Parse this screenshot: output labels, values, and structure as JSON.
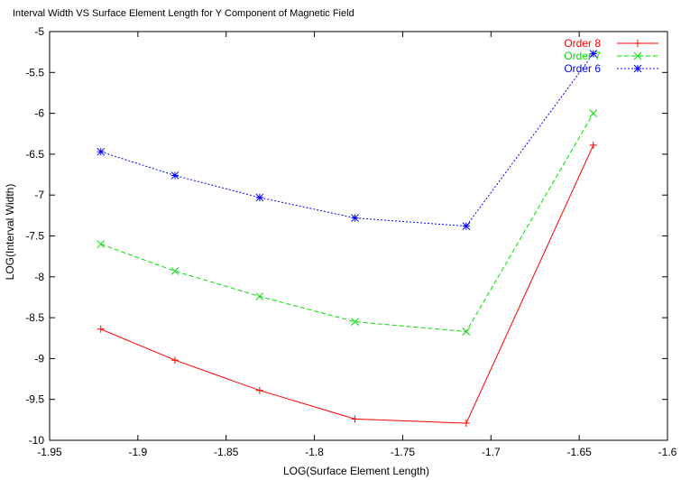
{
  "chart_data": {
    "type": "line",
    "title": "Interval Width VS Surface Element Length for Y Component of Magnetic Field",
    "xlabel": "LOG(Surface Element Length)",
    "ylabel": "LOG(Interval Width)",
    "xlim": [
      -1.95,
      -1.6
    ],
    "ylim": [
      -10,
      -5
    ],
    "xticks": [
      -1.95,
      -1.9,
      -1.85,
      -1.8,
      -1.75,
      -1.7,
      -1.65,
      -1.6
    ],
    "xtick_labels": [
      "-1.95",
      "-1.9",
      "-1.85",
      "-1.8",
      "-1.75",
      "-1.7",
      "-1.65",
      "-1.6"
    ],
    "yticks": [
      -10,
      -9.5,
      -9,
      -8.5,
      -8,
      -7.5,
      -7,
      -6.5,
      -6,
      -5.5,
      -5
    ],
    "ytick_labels": [
      "-10",
      "-9.5",
      "-9",
      "-8.5",
      "-8",
      "-7.5",
      "-7",
      "-6.5",
      "-6",
      "-5.5",
      "-5"
    ],
    "grid": false,
    "legend_position": "top-right",
    "x": [
      -1.921,
      -1.879,
      -1.831,
      -1.777,
      -1.714,
      -1.642
    ],
    "series": [
      {
        "name": "Order 8",
        "color": "#ff0000",
        "dash": "solid",
        "marker": "plus",
        "values": [
          -8.64,
          -9.02,
          -9.39,
          -9.74,
          -9.79,
          -6.39
        ]
      },
      {
        "name": "Order 7",
        "color": "#00dd00",
        "dash": "dashed",
        "marker": "cross",
        "values": [
          -7.6,
          -7.93,
          -8.24,
          -8.55,
          -8.67,
          -6.0
        ]
      },
      {
        "name": "Order 6",
        "color": "#0000ff",
        "dash": "dotted",
        "marker": "star",
        "values": [
          -6.47,
          -6.76,
          -7.03,
          -7.28,
          -7.38,
          -5.27
        ]
      }
    ]
  }
}
